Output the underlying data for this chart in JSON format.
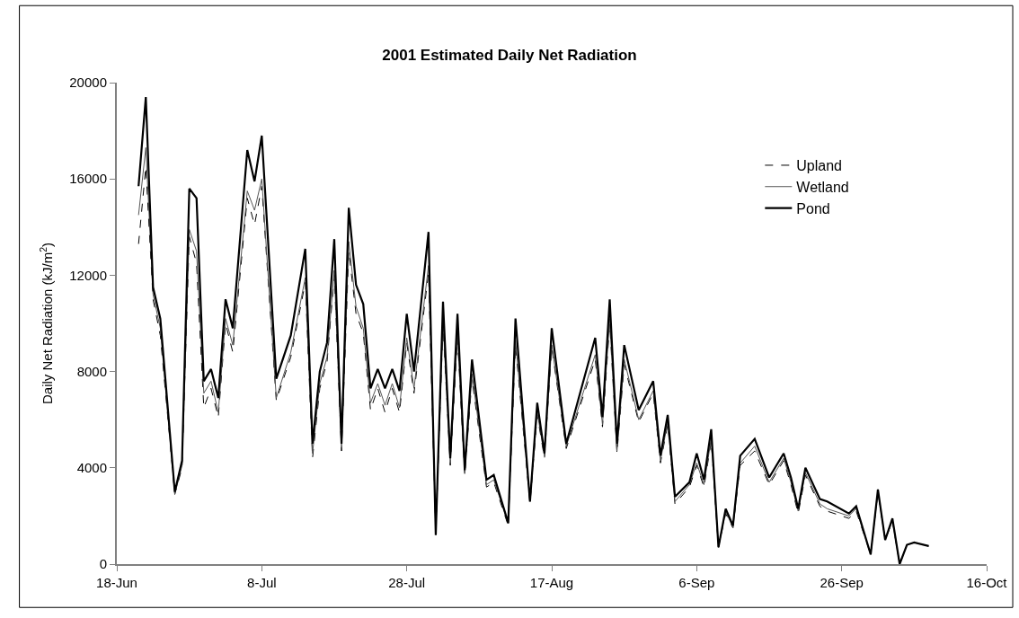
{
  "chart_data": {
    "type": "line",
    "title": "2001 Estimated Daily Net Radiation",
    "ylabel": "Daily Net Radiation (kJ/m$^{2}$)",
    "x": [
      "2001-06-21",
      "2001-06-22",
      "2001-06-23",
      "2001-06-24",
      "2001-06-26",
      "2001-06-27",
      "2001-06-28",
      "2001-06-29",
      "2001-06-30",
      "2001-07-01",
      "2001-07-02",
      "2001-07-03",
      "2001-07-04",
      "2001-07-06",
      "2001-07-07",
      "2001-07-08",
      "2001-07-10",
      "2001-07-12",
      "2001-07-14",
      "2001-07-15",
      "2001-07-16",
      "2001-07-17",
      "2001-07-18",
      "2001-07-19",
      "2001-07-20",
      "2001-07-21",
      "2001-07-22",
      "2001-07-23",
      "2001-07-24",
      "2001-07-25",
      "2001-07-26",
      "2001-07-27",
      "2001-07-28",
      "2001-07-29",
      "2001-07-31",
      "2001-08-01",
      "2001-08-02",
      "2001-08-03",
      "2001-08-04",
      "2001-08-05",
      "2001-08-06",
      "2001-08-08",
      "2001-08-09",
      "2001-08-11",
      "2001-08-12",
      "2001-08-14",
      "2001-08-15",
      "2001-08-16",
      "2001-08-17",
      "2001-08-19",
      "2001-08-23",
      "2001-08-24",
      "2001-08-25",
      "2001-08-26",
      "2001-08-27",
      "2001-08-29",
      "2001-08-31",
      "2001-09-01",
      "2001-09-02",
      "2001-09-03",
      "2001-09-05",
      "2001-09-06",
      "2001-09-07",
      "2001-09-08",
      "2001-09-09",
      "2001-09-10",
      "2001-09-11",
      "2001-09-12",
      "2001-09-14",
      "2001-09-16",
      "2001-09-18",
      "2001-09-19",
      "2001-09-20",
      "2001-09-21",
      "2001-09-23",
      "2001-09-24",
      "2001-09-27",
      "2001-09-28",
      "2001-09-30",
      "2001-10-01",
      "2001-10-02",
      "2001-10-03",
      "2001-10-04",
      "2001-10-05",
      "2001-10-06",
      "2001-10-08"
    ],
    "series": [
      {
        "name": "Upland",
        "color": "#000000",
        "line_style": "dashed",
        "values": [
          13300,
          16500,
          11000,
          9500,
          2900,
          4000,
          13600,
          12500,
          6500,
          7300,
          6100,
          10000,
          8800,
          15200,
          14100,
          15700,
          6800,
          8600,
          11700,
          4400,
          7300,
          8400,
          12000,
          4700,
          13000,
          10400,
          9600,
          6400,
          7300,
          6300,
          7300,
          6300,
          9200,
          7100,
          12100,
          1300,
          9900,
          4100,
          9400,
          3700,
          7700,
          3200,
          3400,
          1600,
          9100,
          2500,
          6200,
          4400,
          9000,
          4800,
          8500,
          5700,
          10000,
          4600,
          8300,
          5900,
          7100,
          4200,
          5800,
          2500,
          3200,
          4100,
          3200,
          5100,
          700,
          2100,
          1500,
          4100,
          4700,
          3300,
          4300,
          3300,
          2100,
          3700,
          2400,
          2200,
          1900,
          2200,
          400,
          3000,
          1000,
          1800,
          0,
          800,
          900,
          750
        ]
      },
      {
        "name": "Wetland",
        "color": "#555555",
        "line_style": "solid",
        "values": [
          14500,
          17300,
          11200,
          9800,
          2900,
          4100,
          13900,
          13000,
          7100,
          7600,
          6300,
          10200,
          9100,
          15500,
          14700,
          16000,
          6900,
          8800,
          11900,
          4600,
          7500,
          8600,
          12200,
          4800,
          13400,
          10700,
          9800,
          6700,
          7500,
          6600,
          7500,
          6500,
          9400,
          7300,
          12400,
          1300,
          10100,
          4200,
          9600,
          3800,
          7900,
          3300,
          3500,
          1700,
          9300,
          2600,
          6300,
          4500,
          9100,
          4900,
          8700,
          5800,
          10200,
          4700,
          8500,
          6000,
          7200,
          4300,
          5900,
          2600,
          3300,
          4200,
          3300,
          5200,
          700,
          2200,
          1500,
          4200,
          4900,
          3400,
          4400,
          3400,
          2200,
          3800,
          2500,
          2300,
          2000,
          2300,
          400,
          3000,
          1000,
          1800,
          0,
          800,
          900,
          750
        ]
      },
      {
        "name": "Pond",
        "color": "#000000",
        "line_style": "solid",
        "values": [
          15700,
          19400,
          11500,
          10200,
          3000,
          4300,
          15600,
          15200,
          7600,
          8100,
          6900,
          11000,
          9800,
          17200,
          15900,
          17800,
          7700,
          9500,
          13100,
          5000,
          8000,
          9200,
          13500,
          5000,
          14800,
          11600,
          10800,
          7300,
          8100,
          7300,
          8100,
          7200,
          10400,
          8000,
          13800,
          1200,
          10900,
          4400,
          10400,
          3900,
          8500,
          3500,
          3700,
          1700,
          10200,
          2600,
          6700,
          4600,
          9800,
          5000,
          9400,
          6100,
          11000,
          5000,
          9100,
          6400,
          7600,
          4500,
          6200,
          2800,
          3400,
          4600,
          3500,
          5600,
          700,
          2300,
          1600,
          4500,
          5200,
          3600,
          4600,
          3600,
          2300,
          4000,
          2700,
          2600,
          2100,
          2400,
          400,
          3100,
          1000,
          1900,
          0,
          800,
          900,
          750
        ]
      }
    ],
    "xlim": [
      "2001-06-18",
      "2001-10-16"
    ],
    "xticks": [
      {
        "value": "2001-06-18",
        "label": "18-Jun"
      },
      {
        "value": "2001-07-08",
        "label": "8-Jul"
      },
      {
        "value": "2001-07-28",
        "label": "28-Jul"
      },
      {
        "value": "2001-08-17",
        "label": "17-Aug"
      },
      {
        "value": "2001-09-06",
        "label": "6-Sep"
      },
      {
        "value": "2001-09-26",
        "label": "26-Sep"
      },
      {
        "value": "2001-10-16",
        "label": "16-Oct"
      }
    ],
    "ylim": [
      0,
      20000
    ],
    "yticks": [
      0,
      4000,
      8000,
      12000,
      16000,
      20000
    ],
    "grid": false,
    "legend": "top right",
    "marker": "none"
  }
}
